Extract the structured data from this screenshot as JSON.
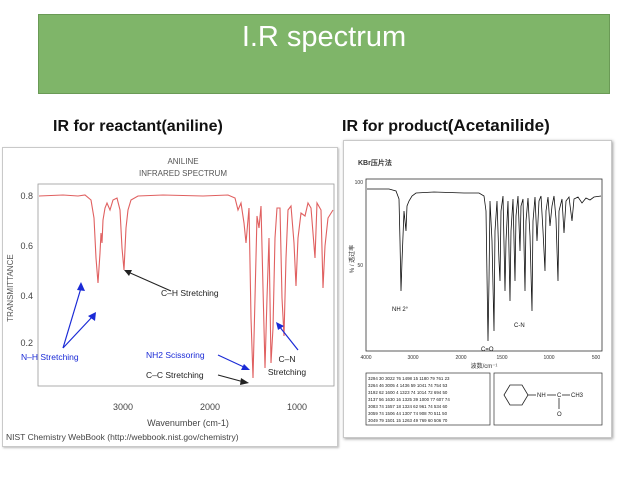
{
  "slide": {
    "title": "I.R spectrum",
    "left_caption": "IR for reactant(aniline)",
    "right_caption_prefix": "IR for product",
    "right_caption_bold": "(Acetanilide)"
  },
  "colors": {
    "title_bg": "#7fb569",
    "title_text": "#ffffff",
    "spectrum_red": "#e06060",
    "annotation_blue": "#1a2ad6"
  },
  "aniline_spectrum": {
    "title_line1": "ANILINE",
    "title_line2": "INFRARED SPECTRUM",
    "ylabel": "TRANSMITTANCE",
    "xlabel": "Wavenumber (cm-1)",
    "y_ticks": [
      "0.8",
      "0.6",
      "0.4",
      "0.2"
    ],
    "x_ticks": [
      "3000",
      "2000",
      "1000"
    ],
    "annotations": {
      "ch_stretching": "C–H Stretching",
      "nh_stretching": "N–H Stretching",
      "nh2_scissoring": "NH2 Scissoring",
      "cc_stretching": "C–C Stretching",
      "cn_line1": "C–N",
      "cn_line2": "Stretching"
    },
    "source": "NIST Chemistry WebBook (http://webbook.nist.gov/chemistry)"
  },
  "acetanilide_spectrum": {
    "header": "KBr压片法",
    "ylabel": "% / 透过率",
    "xlabel": "波数/cm⁻¹",
    "y_ticks": [
      "100",
      "50"
    ],
    "x_ticks": [
      "4000",
      "3000",
      "2000",
      "1500",
      "1000",
      "500"
    ],
    "annotations": {
      "nh2": "NH 2°",
      "cn": "C-N",
      "co": "C=O"
    },
    "table_rows": [
      "3294 30  3022 76  1498 15  1180 79  761 23",
      "3264 46  3005 4   1436 59  1041 74  754 53",
      "3192 62  1600 4   1323 74  1014 72  694 50",
      "3137 56  1630 16  1325 39  1000 77  607 74",
      "3083 74  1557 18  1324 62  961 74   534 60",
      "3059 74  1506 44  1307 74  908 70   511 50",
      "3049 79  1501 15  1263 49  769 60   506 70"
    ],
    "structure_labels": {
      "nh": "NH",
      "c": "C",
      "ch3": "CH3",
      "o": "O"
    }
  }
}
